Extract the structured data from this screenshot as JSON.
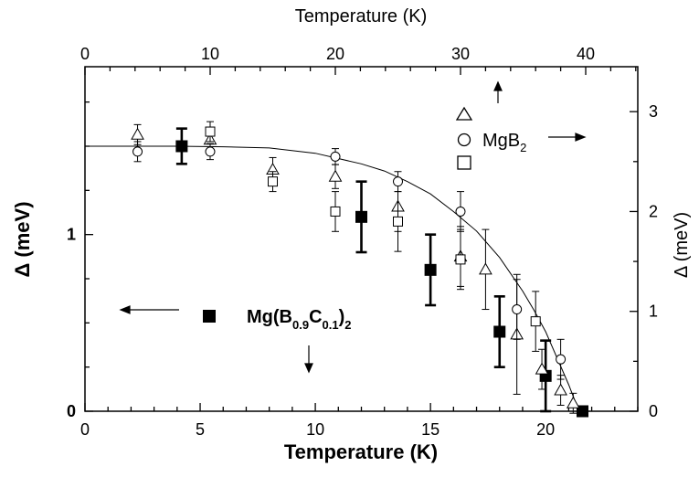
{
  "chart_data": {
    "type": "scatter",
    "title": "",
    "bottom_axis": {
      "label": "Temperature (K)",
      "range": [
        0,
        24
      ],
      "ticks": [
        "0",
        "5",
        "10",
        "15",
        "20"
      ]
    },
    "top_axis": {
      "label": "Temperature (K)",
      "range": [
        0,
        44.16
      ],
      "ticks": [
        "0",
        "10",
        "20",
        "30",
        "40"
      ]
    },
    "left_axis": {
      "label": "Δ (meV)",
      "range": [
        0,
        1.95
      ],
      "ticks": [
        "0",
        "1"
      ]
    },
    "right_axis": {
      "label": "Δ (meV)",
      "range": [
        0,
        3.45
      ],
      "ticks": [
        "0",
        "1",
        "2",
        "3"
      ]
    },
    "legend": {
      "mgb2": {
        "label_main": "MgB",
        "label_sub": "2"
      },
      "mgbc": {
        "label_parts": [
          {
            "text": "Mg(B",
            "sub": false
          },
          {
            "text": "0.9",
            "sub": true
          },
          {
            "text": "C",
            "sub": false
          },
          {
            "text": "0.1",
            "sub": true
          },
          {
            "text": ")",
            "sub": false
          },
          {
            "text": "2",
            "sub": true
          }
        ]
      }
    },
    "series": [
      {
        "name": "Mg(B0.9C0.1)2",
        "marker": "filled-square",
        "axis": "left-bottom",
        "x": [
          4.2,
          12.0,
          15.0,
          18.0,
          20.0,
          21.6
        ],
        "y": [
          1.5,
          1.1,
          0.8,
          0.45,
          0.2,
          0.0
        ],
        "err": [
          0.1,
          0.2,
          0.2,
          0.2,
          0.2,
          0.0
        ]
      },
      {
        "name": "MgB2 (triangles)",
        "marker": "open-triangle",
        "axis": "right-top",
        "x": [
          4.2,
          10.0,
          15.0,
          20.0,
          25.0,
          30.0,
          32.0,
          34.5,
          36.5,
          38.0,
          39.0
        ],
        "y": [
          2.77,
          2.72,
          2.42,
          2.35,
          2.05,
          1.55,
          1.42,
          0.77,
          0.42,
          0.21,
          0.08
        ],
        "err": [
          0.1,
          0.1,
          0.12,
          0.12,
          0.25,
          0.3,
          0.4,
          0.6,
          0.2,
          0.15,
          0.1
        ]
      },
      {
        "name": "MgB2 (circles)",
        "marker": "open-circle",
        "axis": "right-top",
        "x": [
          4.2,
          10.0,
          20.0,
          25.0,
          30.0,
          34.5,
          38.0
        ],
        "y": [
          2.6,
          2.6,
          2.55,
          2.3,
          2.0,
          1.02,
          0.52
        ],
        "err": [
          0.1,
          0.08,
          0.08,
          0.1,
          0.2,
          0.3,
          0.2
        ]
      },
      {
        "name": "MgB2 (squares)",
        "marker": "open-square",
        "axis": "right-top",
        "x": [
          10.0,
          15.0,
          20.0,
          25.0,
          30.0,
          36.0
        ],
        "y": [
          2.8,
          2.3,
          2.0,
          1.9,
          1.52,
          0.9
        ],
        "err": [
          0.1,
          0.1,
          0.2,
          0.3,
          0.3,
          0.3
        ]
      },
      {
        "name": "BCS curve",
        "marker": "line",
        "axis": "left-bottom",
        "x": [
          0,
          2,
          4,
          6,
          8,
          10,
          11,
          12,
          13,
          14,
          15,
          16,
          17,
          18,
          19,
          19.5,
          20,
          20.5,
          21,
          21.3,
          21.5
        ],
        "y": [
          1.5,
          1.5,
          1.5,
          1.497,
          1.49,
          1.46,
          1.43,
          1.4,
          1.36,
          1.3,
          1.23,
          1.13,
          1.02,
          0.87,
          0.68,
          0.57,
          0.45,
          0.3,
          0.15,
          0.05,
          0.0
        ]
      }
    ],
    "annotations": [
      {
        "type": "arrow",
        "direction": "left",
        "meaning": "Mg(B0.9C0.1)2 uses left axis"
      },
      {
        "type": "arrow",
        "direction": "right",
        "meaning": "MgB2 uses right axis"
      },
      {
        "type": "arrow",
        "direction": "up",
        "meaning": "MgB2 uses top axis"
      },
      {
        "type": "arrow",
        "direction": "down",
        "meaning": "Mg(B0.9C0.1)2 uses bottom axis"
      }
    ]
  }
}
